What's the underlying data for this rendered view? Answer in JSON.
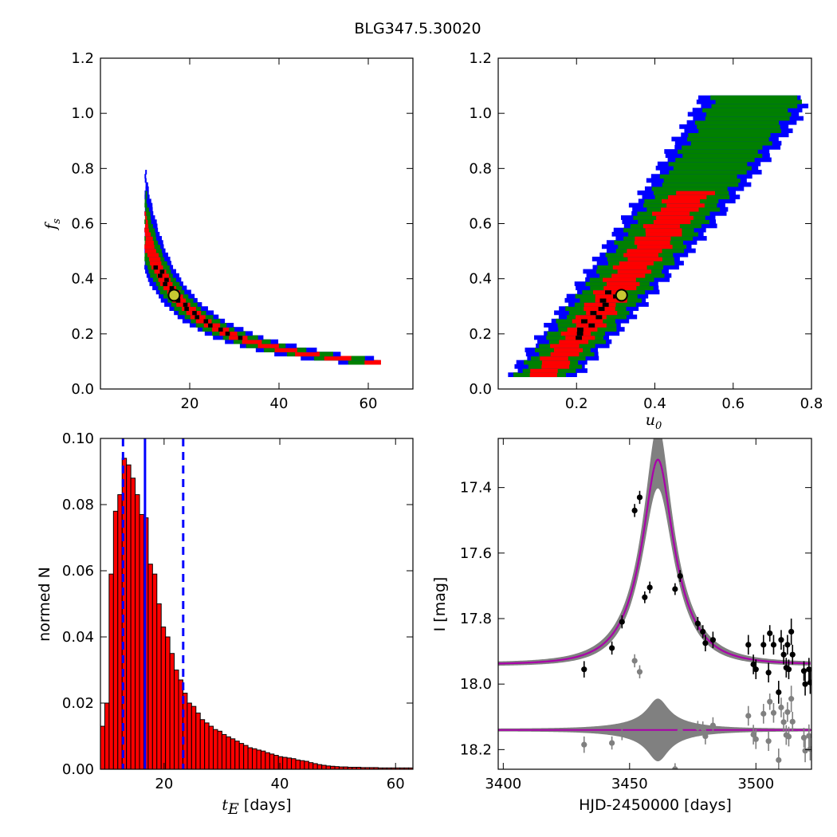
{
  "title": "BLG347.5.30020",
  "chart_data": [
    {
      "type": "heatmap",
      "panel": "top-left",
      "xlabel": "",
      "ylabel": "f_s",
      "ylabel_text": "f",
      "ylabel_sub": "s",
      "xlim": [
        0,
        70
      ],
      "ylim": [
        0,
        1.2
      ],
      "xticks": [
        20,
        40,
        60
      ],
      "yticks": [
        0.0,
        0.2,
        0.4,
        0.6,
        0.8,
        1.0,
        1.2
      ],
      "xtick_labels": [
        "20",
        "40",
        "60"
      ],
      "ytick_labels": [
        "0.0",
        "0.2",
        "0.4",
        "0.6",
        "0.8",
        "1.0",
        "1.2"
      ],
      "colors": {
        "outer": "#0000ff",
        "mid": "#008000",
        "inner": "#ff0000",
        "core": "#000000",
        "marker": "#c8c832"
      },
      "best_fit": {
        "x": 16.5,
        "y": 0.34
      }
    },
    {
      "type": "heatmap",
      "panel": "top-right",
      "xlabel": "u_0",
      "xlabel_text": "u",
      "xlabel_sub": "0",
      "ylabel": "",
      "xlim": [
        0,
        0.8
      ],
      "ylim": [
        0,
        1.2
      ],
      "xticks": [
        0.2,
        0.4,
        0.6,
        0.8
      ],
      "yticks": [
        0.0,
        0.2,
        0.4,
        0.6,
        0.8,
        1.0,
        1.2
      ],
      "xtick_labels": [
        "0.2",
        "0.4",
        "0.6",
        "0.8"
      ],
      "ytick_labels": [
        "0.0",
        "0.2",
        "0.4",
        "0.6",
        "0.8",
        "1.0",
        "1.2"
      ],
      "colors": {
        "outer": "#0000ff",
        "mid": "#008000",
        "inner": "#ff0000",
        "core": "#000000",
        "marker": "#c8c832"
      },
      "best_fit": {
        "x": 0.315,
        "y": 0.34
      }
    },
    {
      "type": "bar",
      "panel": "bottom-left",
      "xlabel": "t_E [days]",
      "xlabel_text": "t",
      "xlabel_sub": "E",
      "xlabel_unit": "[days]",
      "ylabel": "normed N",
      "xlim": [
        9,
        63
      ],
      "ylim": [
        0,
        0.1
      ],
      "xticks": [
        20,
        40,
        60
      ],
      "yticks": [
        0.0,
        0.02,
        0.04,
        0.06,
        0.08,
        0.1
      ],
      "xtick_labels": [
        "20",
        "40",
        "60"
      ],
      "ytick_labels": [
        "0.00",
        "0.02",
        "0.04",
        "0.06",
        "0.08",
        "0.10"
      ],
      "bar_color": "#ff0000",
      "bin_start": 9,
      "bin_width": 0.75,
      "values": [
        0.013,
        0.02,
        0.059,
        0.078,
        0.083,
        0.094,
        0.092,
        0.088,
        0.083,
        0.077,
        0.076,
        0.062,
        0.059,
        0.05,
        0.043,
        0.04,
        0.035,
        0.03,
        0.027,
        0.023,
        0.02,
        0.019,
        0.017,
        0.015,
        0.014,
        0.013,
        0.012,
        0.0115,
        0.0105,
        0.0098,
        0.0092,
        0.0085,
        0.0078,
        0.0072,
        0.0065,
        0.0062,
        0.0058,
        0.0055,
        0.005,
        0.0046,
        0.0042,
        0.0038,
        0.0036,
        0.0034,
        0.0032,
        0.0028,
        0.0026,
        0.0024,
        0.002,
        0.0017,
        0.0014,
        0.0012,
        0.001,
        0.0009,
        0.0008,
        0.0007,
        0.0007,
        0.0006,
        0.0006,
        0.0006,
        0.0005,
        0.0005,
        0.0005,
        0.0005,
        0.0004,
        0.0004,
        0.0004,
        0.0004,
        0.0004,
        0.0004,
        0.0004,
        0.0004
      ],
      "vlines": [
        {
          "x": 12.9,
          "style": "dashed",
          "color": "#0000ff"
        },
        {
          "x": 16.7,
          "style": "solid",
          "color": "#0000ff"
        },
        {
          "x": 23.3,
          "style": "dashed",
          "color": "#0000ff"
        }
      ]
    },
    {
      "type": "scatter",
      "panel": "bottom-right",
      "xlabel": "HJD-2450000 [days]",
      "ylabel": "I [mag]",
      "xlim": [
        3398,
        3522
      ],
      "ylim": [
        18.26,
        17.25
      ],
      "xticks": [
        3400,
        3450,
        3500
      ],
      "yticks": [
        17.4,
        17.6,
        17.8,
        18.0,
        18.2
      ],
      "xtick_labels": [
        "3400",
        "3450",
        "3500"
      ],
      "ytick_labels": [
        "17.4",
        "17.6",
        "17.8",
        "18.0",
        "18.2"
      ],
      "model": {
        "t0": 3461.2,
        "u0": 0.315,
        "tE": 16.5,
        "Ibase": 17.94,
        "fs": 0.34,
        "color": "#aa00aa",
        "band_color": "#808080"
      },
      "residual_offset": 18.14,
      "series": [
        {
          "name": "",
          "color": "#000000",
          "points": [
            {
              "x": 3432,
              "y": 17.955,
              "err": 0.025
            },
            {
              "x": 3443,
              "y": 17.89,
              "err": 0.02
            },
            {
              "x": 3447,
              "y": 17.81,
              "err": 0.02
            },
            {
              "x": 3452,
              "y": 17.47,
              "err": 0.02
            },
            {
              "x": 3454,
              "y": 17.43,
              "err": 0.02
            },
            {
              "x": 3456,
              "y": 17.735,
              "err": 0.018
            },
            {
              "x": 3458,
              "y": 17.705,
              "err": 0.018
            },
            {
              "x": 3468,
              "y": 17.71,
              "err": 0.018
            },
            {
              "x": 3470,
              "y": 17.67,
              "err": 0.018
            },
            {
              "x": 3477,
              "y": 17.815,
              "err": 0.02
            },
            {
              "x": 3479,
              "y": 17.84,
              "err": 0.02
            },
            {
              "x": 3480,
              "y": 17.875,
              "err": 0.025
            },
            {
              "x": 3483,
              "y": 17.865,
              "err": 0.025
            },
            {
              "x": 3497,
              "y": 17.88,
              "err": 0.03
            },
            {
              "x": 3499,
              "y": 17.94,
              "err": 0.03
            },
            {
              "x": 3500,
              "y": 17.955,
              "err": 0.03
            },
            {
              "x": 3503,
              "y": 17.88,
              "err": 0.03
            },
            {
              "x": 3505,
              "y": 17.965,
              "err": 0.03
            },
            {
              "x": 3505.5,
              "y": 17.845,
              "err": 0.025
            },
            {
              "x": 3507,
              "y": 17.88,
              "err": 0.03
            },
            {
              "x": 3509,
              "y": 18.025,
              "err": 0.035
            },
            {
              "x": 3510,
              "y": 17.865,
              "err": 0.03
            },
            {
              "x": 3511,
              "y": 17.91,
              "err": 0.03
            },
            {
              "x": 3512,
              "y": 17.95,
              "err": 0.03
            },
            {
              "x": 3512.5,
              "y": 17.88,
              "err": 0.03
            },
            {
              "x": 3513,
              "y": 17.955,
              "err": 0.03
            },
            {
              "x": 3514,
              "y": 17.84,
              "err": 0.04
            },
            {
              "x": 3514.5,
              "y": 17.91,
              "err": 0.03
            },
            {
              "x": 3519,
              "y": 17.96,
              "err": 0.03
            },
            {
              "x": 3519.5,
              "y": 18.0,
              "err": 0.035
            },
            {
              "x": 3521,
              "y": 17.955,
              "err": 0.035
            },
            {
              "x": 3521.5,
              "y": 17.995,
              "err": 0.035
            }
          ]
        }
      ]
    }
  ]
}
